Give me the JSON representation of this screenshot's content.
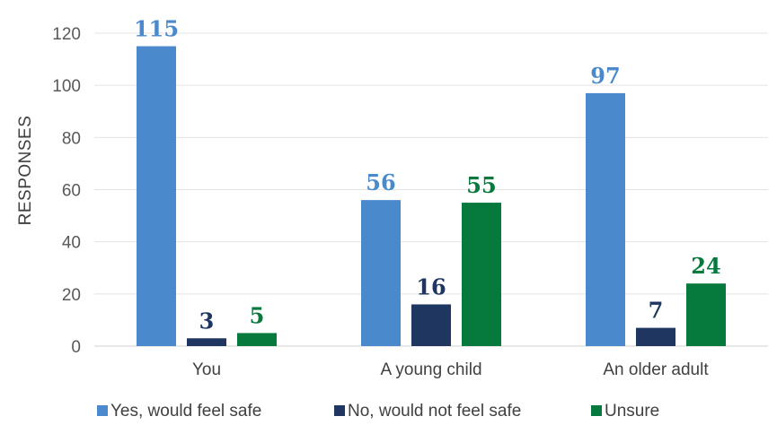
{
  "chart_data": {
    "type": "bar",
    "categories": [
      "You",
      "A young child",
      "An older adult"
    ],
    "series": [
      {
        "name": "Yes, would feel safe",
        "color": "#4a89cc",
        "label_color": "#4a89cc",
        "values": [
          115,
          56,
          97
        ]
      },
      {
        "name": "No, would not feel safe",
        "color": "#1f3660",
        "label_color": "#1f3660",
        "values": [
          3,
          16,
          7
        ]
      },
      {
        "name": "Unsure",
        "color": "#057a3c",
        "label_color": "#057a3c",
        "values": [
          5,
          55,
          24
        ]
      }
    ],
    "ylabel": "RESPONSES",
    "xlabel": "",
    "title": "",
    "ylim": [
      0,
      120
    ],
    "yticks": [
      0,
      20,
      40,
      60,
      80,
      100,
      120
    ],
    "grid": true,
    "legend_position": "bottom"
  }
}
